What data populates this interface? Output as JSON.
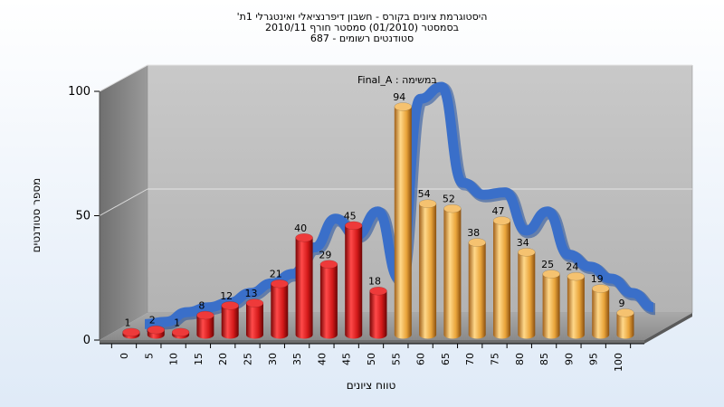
{
  "chart_data": {
    "type": "bar",
    "title_lines": [
      "היסטוגרמת ציונים בקורס - חשבון דיפרנציאלי ואינטגרלי 1ת'",
      "בסמסטר  (01/2010)  סמסטר חורף  2010/11",
      "סטודנטים רשומים - 687"
    ],
    "subtitle": "Final_A : במשימה",
    "xlabel": "טווח ציונים",
    "ylabel": "מספר סטודנטים",
    "ylim": [
      0,
      100
    ],
    "yticks": [
      0,
      50,
      100
    ],
    "categories": [
      "0",
      "5",
      "10",
      "15",
      "20",
      "25",
      "30",
      "35",
      "40",
      "45",
      "50",
      "55",
      "60",
      "65",
      "70",
      "75",
      "80",
      "85",
      "90",
      "95",
      "100"
    ],
    "series": [
      {
        "values": [
          1,
          2,
          1,
          8,
          12,
          13,
          21,
          40,
          29,
          45,
          18,
          94,
          54,
          52,
          38,
          47,
          34,
          25,
          24,
          19,
          9
        ],
        "colors": [
          "#d42020",
          "#d42020",
          "#d42020",
          "#d42020",
          "#d42020",
          "#d42020",
          "#d42020",
          "#d42020",
          "#d42020",
          "#d42020",
          "#d42020",
          "#e9a43a",
          "#e9a43a",
          "#e9a43a",
          "#e9a43a",
          "#e9a43a",
          "#e9a43a",
          "#e9a43a",
          "#e9a43a",
          "#e9a43a",
          "#e9a43a"
        ]
      }
    ],
    "trend_curve": [
      1,
      2,
      6,
      8,
      10,
      14,
      18,
      22,
      33,
      45,
      38,
      48,
      20,
      95,
      100,
      60,
      55,
      56,
      40,
      48,
      30,
      25,
      20,
      14,
      8
    ],
    "colors": {
      "red": "#d42020",
      "orange": "#e9a43a",
      "curve": "#3a6fc9"
    }
  }
}
